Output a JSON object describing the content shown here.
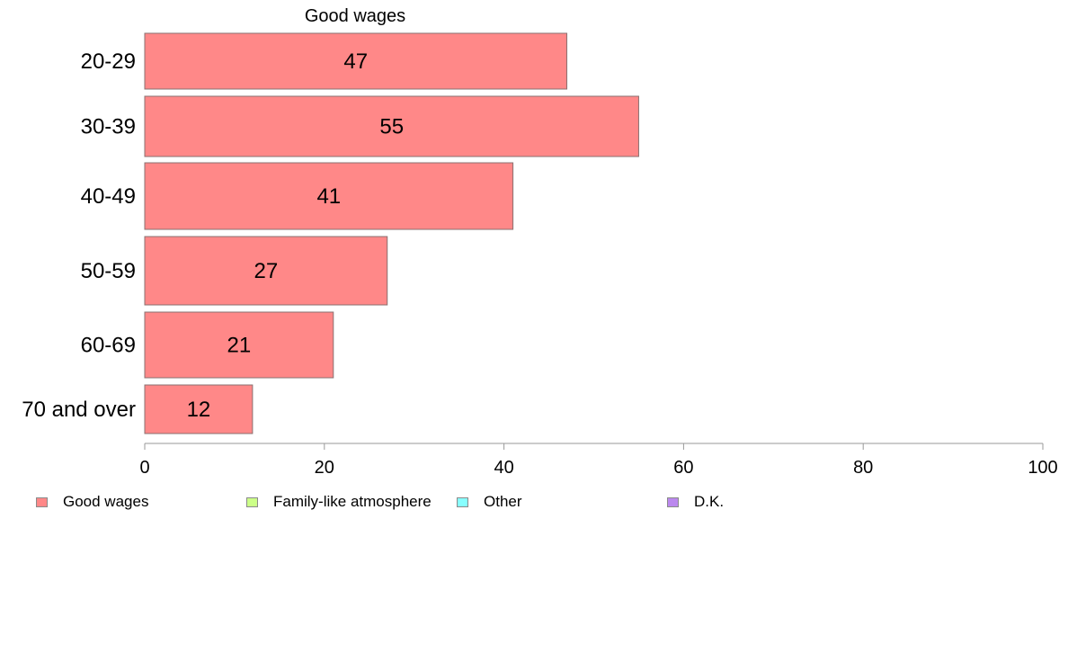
{
  "chart_data": {
    "type": "bar",
    "orientation": "horizontal",
    "title": "Good wages",
    "categories": [
      "20-29",
      "30-39",
      "40-49",
      "50-59",
      "60-69",
      "70 and over"
    ],
    "series": [
      {
        "name": "Good wages",
        "values": [
          47,
          55,
          41,
          27,
          21,
          12
        ],
        "color": "#ff8888"
      }
    ],
    "xlim": [
      0,
      100
    ],
    "x_ticks": [
      "0",
      "20",
      "40",
      "60",
      "80",
      "100"
    ],
    "grid": false,
    "legend": {
      "position": "bottom-left",
      "items": [
        {
          "label": "Good wages",
          "color": "#ff8888"
        },
        {
          "label": "Family-like atmosphere",
          "color": "#ccff88"
        },
        {
          "label": "Other",
          "color": "#88ffff"
        },
        {
          "label": "D.K.",
          "color": "#bb88ee"
        }
      ]
    }
  }
}
